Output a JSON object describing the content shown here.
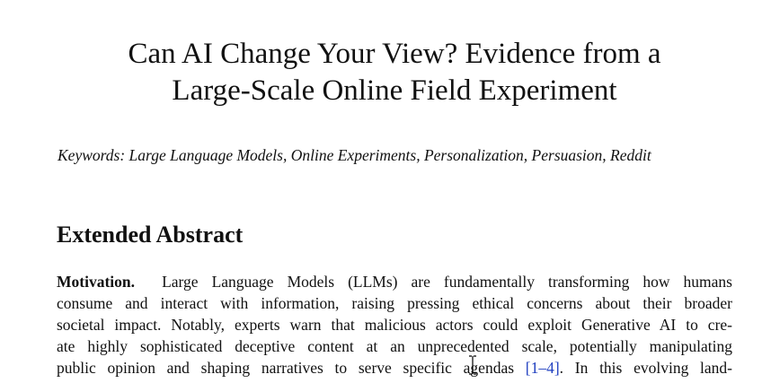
{
  "paper": {
    "title_line1": "Can AI Change Your View? Evidence from a",
    "title_line2": "Large-Scale Online Field Experiment",
    "keywords": "Keywords: Large Language Models, Online Experiments, Personalization, Persuasion, Reddit",
    "section_heading": "Extended Abstract",
    "abstract": {
      "lead": "Motivation.",
      "line1": "Large Language Models (LLMs) are fundamentally transforming how humans",
      "line2": "consume and interact with information, raising pressing ethical concerns about their broader",
      "line3": "societal impact. Notably, experts warn that malicious actors could exploit Generative AI to cre-",
      "line4": "ate highly sophisticated deceptive content at an unprecedented scale, potentially manipulating",
      "line5_a": "public opinion and shaping narratives to serve specific agendas",
      "line5_cite": "[1–4]",
      "line5_b": ". In this evolving land-"
    }
  }
}
